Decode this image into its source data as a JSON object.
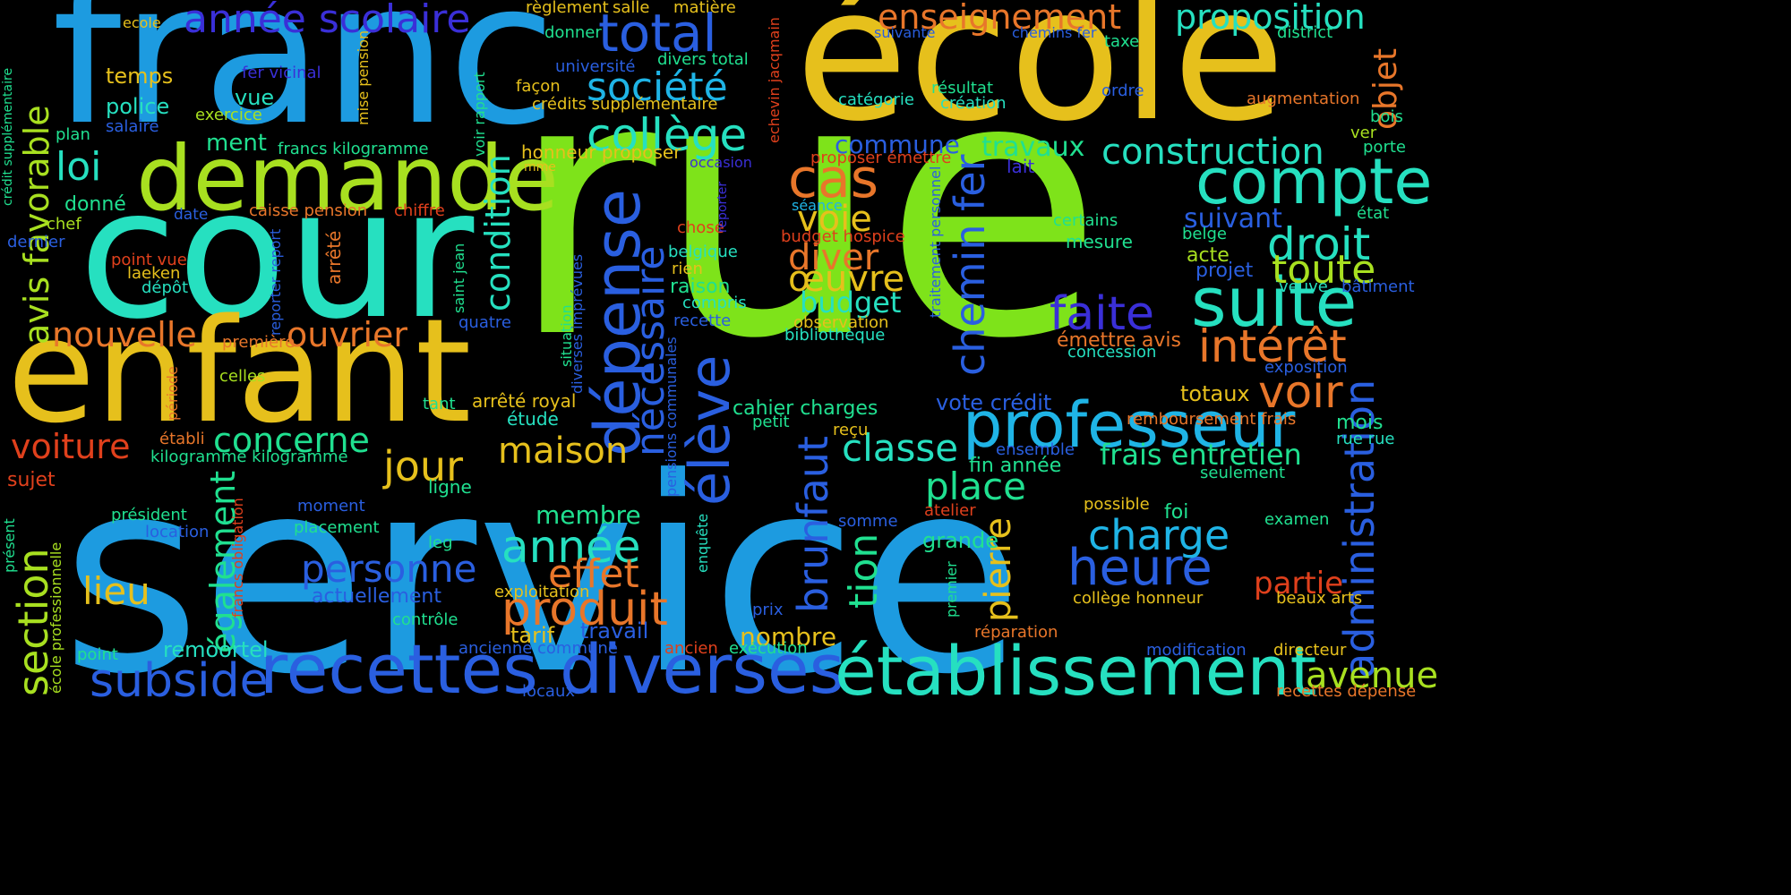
{
  "palette": {
    "green": "#7ee31a",
    "blue": "#1d9be0",
    "yellow": "#e6c01c",
    "teal": "#26e0c0",
    "lime": "#a8e020",
    "lightblue": "#1fb4e6",
    "indigo": "#3a2fd8",
    "royal": "#2a5fe0",
    "orange": "#e8762a",
    "red": "#e0401c",
    "mint": "#20e090"
  },
  "words": [
    {
      "text": "rue",
      "color": "green"
    },
    {
      "text": "service",
      "color": "blue"
    },
    {
      "text": "franc",
      "color": "blue"
    },
    {
      "text": "école",
      "color": "yellow"
    },
    {
      "text": "cour",
      "color": "teal"
    },
    {
      "text": "enfant",
      "color": "yellow"
    },
    {
      "text": "demande",
      "color": "lime"
    },
    {
      "text": "recettes diverses",
      "color": "royal"
    },
    {
      "text": "établissement",
      "color": "teal"
    },
    {
      "text": "professeur",
      "color": "lightblue"
    },
    {
      "text": "suite",
      "color": "teal"
    },
    {
      "text": "compte",
      "color": "teal"
    },
    {
      "text": "dépense",
      "color": "royal"
    },
    {
      "text": "élève",
      "color": "royal"
    },
    {
      "text": "année scolaire",
      "color": "indigo"
    },
    {
      "text": "total",
      "color": "royal"
    },
    {
      "text": "enseignement",
      "color": "orange"
    },
    {
      "text": "proposition",
      "color": "teal"
    },
    {
      "text": "collège",
      "color": "teal"
    },
    {
      "text": "société",
      "color": "lightblue"
    },
    {
      "text": "construction",
      "color": "teal"
    },
    {
      "text": "cas",
      "color": "orange"
    },
    {
      "text": "droit",
      "color": "teal"
    },
    {
      "text": "toute",
      "color": "lime"
    },
    {
      "text": "intérêt",
      "color": "orange"
    },
    {
      "text": "voir",
      "color": "orange"
    },
    {
      "text": "faite",
      "color": "indigo"
    },
    {
      "text": "chemin fer",
      "color": "royal"
    },
    {
      "text": "administration",
      "color": "royal"
    },
    {
      "text": "avis favorable",
      "color": "lime"
    },
    {
      "text": "loi",
      "color": "teal"
    },
    {
      "text": "nouvelle",
      "color": "orange"
    },
    {
      "text": "ouvrier",
      "color": "orange"
    },
    {
      "text": "voiture",
      "color": "red"
    },
    {
      "text": "concerne",
      "color": "mint"
    },
    {
      "text": "jour",
      "color": "yellow"
    },
    {
      "text": "maison",
      "color": "yellow"
    },
    {
      "text": "année",
      "color": "teal"
    },
    {
      "text": "produit",
      "color": "orange"
    },
    {
      "text": "effet",
      "color": "orange"
    },
    {
      "text": "personne",
      "color": "royal"
    },
    {
      "text": "subside",
      "color": "royal"
    },
    {
      "text": "section",
      "color": "lime"
    },
    {
      "text": "également",
      "color": "mint"
    },
    {
      "text": "lieu",
      "color": "yellow"
    },
    {
      "text": "heure",
      "color": "royal"
    },
    {
      "text": "charge",
      "color": "lightblue"
    },
    {
      "text": "place",
      "color": "mint"
    },
    {
      "text": "classe",
      "color": "teal"
    },
    {
      "text": "voie",
      "color": "yellow"
    },
    {
      "text": "diver",
      "color": "orange"
    },
    {
      "text": "œuvre",
      "color": "yellow"
    },
    {
      "text": "budget",
      "color": "teal"
    },
    {
      "text": "nécessaire",
      "color": "royal"
    },
    {
      "text": "condition",
      "color": "teal"
    },
    {
      "text": "brunfaut",
      "color": "royal"
    },
    {
      "text": "tion",
      "color": "mint"
    },
    {
      "text": "pierre",
      "color": "yellow"
    },
    {
      "text": "avenue",
      "color": "lime"
    },
    {
      "text": "frais entretien",
      "color": "mint"
    },
    {
      "text": "objet",
      "color": "orange"
    },
    {
      "text": "partie",
      "color": "red"
    },
    {
      "text": "travaux",
      "color": "mint"
    },
    {
      "text": "commune",
      "color": "royal"
    },
    {
      "text": "suivant",
      "color": "royal"
    },
    {
      "text": "projet",
      "color": "royal"
    },
    {
      "text": "acte",
      "color": "lime"
    },
    {
      "text": "émettre avis",
      "color": "orange"
    },
    {
      "text": "totaux",
      "color": "yellow"
    },
    {
      "text": "mois",
      "color": "mint"
    },
    {
      "text": "rue rue",
      "color": "teal"
    },
    {
      "text": "membre",
      "color": "mint"
    },
    {
      "text": "nombre",
      "color": "yellow"
    },
    {
      "text": "travail",
      "color": "royal"
    },
    {
      "text": "tarif",
      "color": "yellow"
    },
    {
      "text": "remoortel",
      "color": "teal"
    },
    {
      "text": "temps",
      "color": "yellow"
    },
    {
      "text": "police",
      "color": "teal"
    },
    {
      "text": "ment",
      "color": "mint"
    },
    {
      "text": "vue",
      "color": "teal"
    },
    {
      "text": "donné",
      "color": "mint"
    },
    {
      "text": "chef",
      "color": "lime"
    },
    {
      "text": "exercice",
      "color": "lime"
    },
    {
      "text": "salaire",
      "color": "royal"
    },
    {
      "text": "plan",
      "color": "mint"
    },
    {
      "text": "date",
      "color": "royal"
    },
    {
      "text": "caisse pension",
      "color": "orange"
    },
    {
      "text": "chiffre",
      "color": "red"
    },
    {
      "text": "point vue",
      "color": "red"
    },
    {
      "text": "laeken",
      "color": "yellow"
    },
    {
      "text": "dépôt",
      "color": "teal"
    },
    {
      "text": "dernier",
      "color": "royal"
    },
    {
      "text": "première",
      "color": "orange"
    },
    {
      "text": "celles",
      "color": "lime"
    },
    {
      "text": "établi",
      "color": "orange"
    },
    {
      "text": "kilogramme kilogramme",
      "color": "mint"
    },
    {
      "text": "sujet",
      "color": "red"
    },
    {
      "text": "président",
      "color": "mint"
    },
    {
      "text": "location",
      "color": "royal"
    },
    {
      "text": "moment",
      "color": "royal"
    },
    {
      "text": "placement",
      "color": "mint"
    },
    {
      "text": "actuellement",
      "color": "royal"
    },
    {
      "text": "point",
      "color": "mint"
    },
    {
      "text": "contrôle",
      "color": "mint"
    },
    {
      "text": "ligne",
      "color": "mint"
    },
    {
      "text": "leg",
      "color": "mint"
    },
    {
      "text": "étude",
      "color": "teal"
    },
    {
      "text": "arrêté royal",
      "color": "yellow"
    },
    {
      "text": "tant",
      "color": "mint"
    },
    {
      "text": "quatre",
      "color": "royal"
    },
    {
      "text": "honneur proposer",
      "color": "yellow"
    },
    {
      "text": "mme",
      "color": "yellow"
    },
    {
      "text": "crédits supplémentaire",
      "color": "yellow"
    },
    {
      "text": "façon",
      "color": "yellow"
    },
    {
      "text": "université",
      "color": "royal"
    },
    {
      "text": "donner",
      "color": "mint"
    },
    {
      "text": "règlement",
      "color": "yellow"
    },
    {
      "text": "salle",
      "color": "yellow"
    },
    {
      "text": "matière",
      "color": "yellow"
    },
    {
      "text": "divers total",
      "color": "mint"
    },
    {
      "text": "ecole",
      "color": "yellow"
    },
    {
      "text": "fer vicinal",
      "color": "indigo"
    },
    {
      "text": "francs kilogramme",
      "color": "mint"
    },
    {
      "text": "chose",
      "color": "red"
    },
    {
      "text": "belgique",
      "color": "teal"
    },
    {
      "text": "rien",
      "color": "yellow"
    },
    {
      "text": "raison",
      "color": "mint"
    },
    {
      "text": "compris",
      "color": "teal"
    },
    {
      "text": "recette",
      "color": "royal"
    },
    {
      "text": "occasion",
      "color": "indigo"
    },
    {
      "text": "proposer émettre",
      "color": "red"
    },
    {
      "text": "séance",
      "color": "lightblue"
    },
    {
      "text": "budget hospice",
      "color": "red"
    },
    {
      "text": "observation",
      "color": "yellow"
    },
    {
      "text": "bibliothèque",
      "color": "teal"
    },
    {
      "text": "cahier charges",
      "color": "mint"
    },
    {
      "text": "petit",
      "color": "mint"
    },
    {
      "text": "reçu",
      "color": "yellow"
    },
    {
      "text": "vote crédit",
      "color": "royal"
    },
    {
      "text": "exécution",
      "color": "mint"
    },
    {
      "text": "ancien",
      "color": "red"
    },
    {
      "text": "prix",
      "color": "royal"
    },
    {
      "text": "ancienne commune",
      "color": "royal"
    },
    {
      "text": "exploitation",
      "color": "yellow"
    },
    {
      "text": "locaux",
      "color": "royal"
    },
    {
      "text": "fin année",
      "color": "mint"
    },
    {
      "text": "ensemble",
      "color": "royal"
    },
    {
      "text": "grande",
      "color": "mint"
    },
    {
      "text": "somme",
      "color": "royal"
    },
    {
      "text": "atelier",
      "color": "red"
    },
    {
      "text": "possible",
      "color": "yellow"
    },
    {
      "text": "foi",
      "color": "mint"
    },
    {
      "text": "collège honneur",
      "color": "yellow"
    },
    {
      "text": "réparation",
      "color": "orange"
    },
    {
      "text": "modification",
      "color": "royal"
    },
    {
      "text": "directeur",
      "color": "yellow"
    },
    {
      "text": "recettes dépense",
      "color": "orange"
    },
    {
      "text": "beaux arts",
      "color": "yellow"
    },
    {
      "text": "examen",
      "color": "mint"
    },
    {
      "text": "seulement",
      "color": "mint"
    },
    {
      "text": "remboursement frais",
      "color": "orange"
    },
    {
      "text": "exposition",
      "color": "royal"
    },
    {
      "text": "concession",
      "color": "teal"
    },
    {
      "text": "veuve",
      "color": "teal"
    },
    {
      "text": "bâtiment",
      "color": "royal"
    },
    {
      "text": "belge",
      "color": "mint"
    },
    {
      "text": "certains",
      "color": "mint"
    },
    {
      "text": "mesure",
      "color": "mint"
    },
    {
      "text": "état",
      "color": "mint"
    },
    {
      "text": "lait",
      "color": "indigo"
    },
    {
      "text": "catégorie",
      "color": "teal"
    },
    {
      "text": "résultat",
      "color": "mint"
    },
    {
      "text": "création",
      "color": "teal"
    },
    {
      "text": "ordre",
      "color": "royal"
    },
    {
      "text": "suivante",
      "color": "royal"
    },
    {
      "text": "chemins fer",
      "color": "royal"
    },
    {
      "text": "taxe",
      "color": "mint"
    },
    {
      "text": "district",
      "color": "mint"
    },
    {
      "text": "augmentation",
      "color": "orange"
    },
    {
      "text": "bois",
      "color": "mint"
    },
    {
      "text": "ver",
      "color": "lime"
    },
    {
      "text": "porte",
      "color": "mint"
    },
    {
      "text": "crédit supplémentaire",
      "color": "mint"
    },
    {
      "text": "mise pension",
      "color": "yellow"
    },
    {
      "text": "voir rapport",
      "color": "mint"
    },
    {
      "text": "saint jean",
      "color": "mint"
    },
    {
      "text": "reporter report",
      "color": "royal"
    },
    {
      "text": "arrêté",
      "color": "orange"
    },
    {
      "text": "période",
      "color": "orange"
    },
    {
      "text": "francs obligation",
      "color": "red"
    },
    {
      "text": "école professionnelle",
      "color": "lime"
    },
    {
      "text": "présent",
      "color": "mint"
    },
    {
      "text": "situation",
      "color": "mint"
    },
    {
      "text": "diverses imprévues",
      "color": "royal"
    },
    {
      "text": "pensions communales",
      "color": "royal"
    },
    {
      "text": "enquête",
      "color": "teal"
    },
    {
      "text": "echevin jacqmain",
      "color": "red"
    },
    {
      "text": "traitement personnel",
      "color": "royal"
    },
    {
      "text": "premier",
      "color": "mint"
    },
    {
      "text": "reporter",
      "color": "indigo"
    }
  ]
}
